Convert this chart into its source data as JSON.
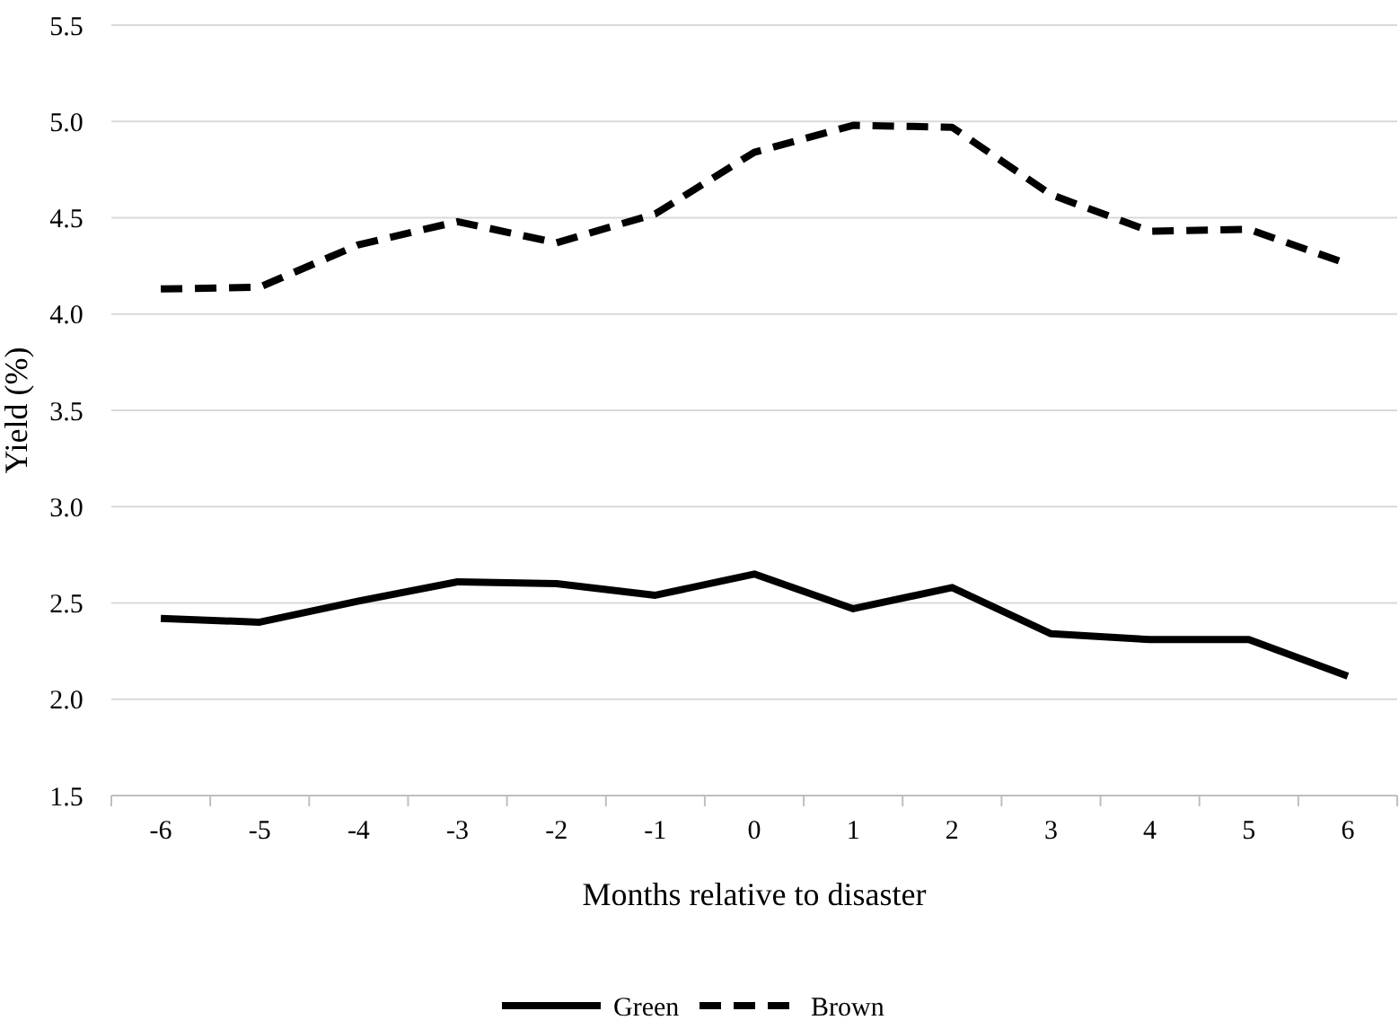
{
  "chart_data": {
    "type": "line",
    "xlabel": "Months relative to disaster",
    "ylabel": "Yield (%)",
    "categories": [
      "-6",
      "-5",
      "-4",
      "-3",
      "-2",
      "-1",
      "0",
      "1",
      "2",
      "3",
      "4",
      "5",
      "6"
    ],
    "ylim": [
      1.5,
      5.5
    ],
    "yticks": [
      {
        "value": 1.5,
        "label": "1.5"
      },
      {
        "value": 2,
        "label": "2.0"
      },
      {
        "value": 2.5,
        "label": "2.5"
      },
      {
        "value": 3,
        "label": "3.0"
      },
      {
        "value": 3.5,
        "label": "3.5"
      },
      {
        "value": 4,
        "label": "4.0"
      },
      {
        "value": 4.5,
        "label": "4.5"
      },
      {
        "value": 5,
        "label": "5.0"
      },
      {
        "value": 5.5,
        "label": "5.5"
      }
    ],
    "grid": "y",
    "legend": "bottom",
    "marker": "none",
    "series": [
      {
        "name": "Green",
        "color": "#000000",
        "line_style": "solid",
        "values": [
          2.42,
          2.4,
          2.51,
          2.61,
          2.6,
          2.54,
          2.65,
          2.47,
          2.58,
          2.34,
          2.31,
          2.31,
          2.12
        ]
      },
      {
        "name": "Brown",
        "color": "#000000",
        "line_style": "dashed",
        "values": [
          4.13,
          4.14,
          4.36,
          4.48,
          4.37,
          4.52,
          4.84,
          4.98,
          4.97,
          4.62,
          4.43,
          4.44,
          4.26
        ]
      }
    ]
  }
}
